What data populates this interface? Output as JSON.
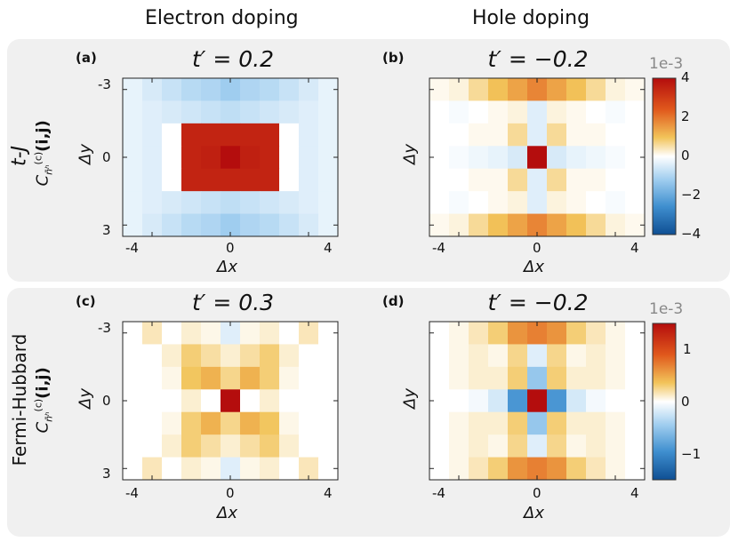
{
  "columns": {
    "left": "Electron doping",
    "right": "Hole doping"
  },
  "rows": {
    "top": "t-J",
    "bottom": "Fermi-Hubbard"
  },
  "row_ylabel_main": "C",
  "row_ylabel_sup": "(c)",
  "row_ylabel_sub": "n̄ʰ",
  "row_ylabel_args": "(i,j)",
  "colorbar_top": {
    "multiplier": "1e-3",
    "ticks": [
      "4",
      "2",
      "0",
      "−2",
      "−4"
    ]
  },
  "colorbar_bottom": {
    "multiplier": "1e-3",
    "ticks": [
      "1",
      "0",
      "−1"
    ]
  },
  "chart_data": [
    {
      "type": "heatmap",
      "panel": "(a)",
      "title": "t′ = 0.2",
      "xlabel": "Δx",
      "ylabel": "Δy",
      "x": [
        -5,
        -4,
        -3,
        -2,
        -1,
        0,
        1,
        2,
        3,
        4,
        5
      ],
      "y": [
        -3,
        -2,
        -1,
        0,
        1,
        2,
        3
      ],
      "xticks": [
        "-4",
        "0",
        "4"
      ],
      "yticks": [
        "-3",
        "0",
        "3"
      ],
      "clim": [
        -4,
        4
      ],
      "units": "1e-3",
      "values": [
        [
          -0.3,
          -0.5,
          -0.7,
          -0.9,
          -1.0,
          -1.2,
          -1.0,
          -0.9,
          -0.7,
          -0.5,
          -0.3
        ],
        [
          -0.3,
          -0.4,
          -0.5,
          -0.6,
          -0.7,
          -0.8,
          -0.7,
          -0.6,
          -0.5,
          -0.4,
          -0.3
        ],
        [
          -0.3,
          -0.4,
          0.0,
          3.5,
          3.5,
          3.5,
          3.5,
          3.5,
          0.0,
          -0.4,
          -0.3
        ],
        [
          -0.3,
          -0.4,
          0.0,
          3.5,
          3.6,
          5.0,
          3.6,
          3.5,
          0.0,
          -0.4,
          -0.3
        ],
        [
          -0.3,
          -0.4,
          0.0,
          3.5,
          3.5,
          3.5,
          3.5,
          3.5,
          0.0,
          -0.4,
          -0.3
        ],
        [
          -0.3,
          -0.4,
          -0.5,
          -0.6,
          -0.7,
          -0.8,
          -0.7,
          -0.6,
          -0.5,
          -0.4,
          -0.3
        ],
        [
          -0.3,
          -0.5,
          -0.7,
          -0.9,
          -1.0,
          -1.2,
          -1.0,
          -0.9,
          -0.7,
          -0.5,
          -0.3
        ]
      ]
    },
    {
      "type": "heatmap",
      "panel": "(b)",
      "title": "t′ = −0.2",
      "xlabel": "Δx",
      "ylabel": "Δy",
      "x": [
        -5,
        -4,
        -3,
        -2,
        -1,
        0,
        1,
        2,
        3,
        4,
        5
      ],
      "y": [
        -3,
        -2,
        -1,
        0,
        1,
        2,
        3
      ],
      "xticks": [
        "-4",
        "0",
        "4"
      ],
      "yticks": [
        "-3",
        "0",
        "3"
      ],
      "clim": [
        -4,
        4
      ],
      "units": "1e-3",
      "values": [
        [
          0.1,
          0.2,
          0.6,
          1.0,
          1.4,
          1.8,
          1.4,
          1.0,
          0.6,
          0.2,
          0.1
        ],
        [
          0.0,
          -0.1,
          0.0,
          0.1,
          0.2,
          -0.4,
          0.2,
          0.1,
          0.0,
          -0.1,
          0.0
        ],
        [
          0.0,
          0.0,
          0.1,
          0.1,
          0.6,
          -0.4,
          0.6,
          0.1,
          0.1,
          0.0,
          0.0
        ],
        [
          0.0,
          -0.1,
          -0.2,
          -0.3,
          -0.5,
          5.0,
          -0.5,
          -0.3,
          -0.2,
          -0.1,
          0.0
        ],
        [
          0.0,
          0.0,
          0.1,
          0.1,
          0.6,
          -0.4,
          0.6,
          0.1,
          0.1,
          0.0,
          0.0
        ],
        [
          0.0,
          -0.1,
          0.0,
          0.1,
          0.2,
          -0.4,
          0.2,
          0.1,
          0.0,
          -0.1,
          0.0
        ],
        [
          0.1,
          0.2,
          0.6,
          1.0,
          1.4,
          1.8,
          1.4,
          1.0,
          0.6,
          0.2,
          0.1
        ]
      ]
    },
    {
      "type": "heatmap",
      "panel": "(c)",
      "title": "t′ = 0.3",
      "xlabel": "Δx",
      "ylabel": "Δy",
      "x": [
        -5,
        -4,
        -3,
        -2,
        -1,
        0,
        1,
        2,
        3,
        4,
        5
      ],
      "y": [
        -3,
        -2,
        -1,
        0,
        1,
        2,
        3
      ],
      "xticks": [
        "-4",
        "0",
        "4"
      ],
      "yticks": [
        "-3",
        "0",
        "3"
      ],
      "clim": [
        -1.5,
        1.5
      ],
      "units": "1e-3",
      "values": [
        [
          0.0,
          0.15,
          0.0,
          0.1,
          0.05,
          -0.15,
          0.05,
          0.1,
          0.0,
          0.15,
          0.0
        ],
        [
          0.0,
          0.0,
          0.1,
          0.3,
          0.2,
          0.1,
          0.2,
          0.3,
          0.1,
          0.0,
          0.0
        ],
        [
          0.0,
          0.0,
          0.05,
          0.35,
          0.45,
          0.25,
          0.45,
          0.3,
          0.05,
          0.0,
          0.0
        ],
        [
          0.0,
          0.0,
          0.0,
          0.1,
          0.0,
          2.0,
          0.0,
          0.1,
          0.0,
          0.0,
          0.0
        ],
        [
          0.0,
          0.0,
          0.05,
          0.3,
          0.45,
          0.25,
          0.45,
          0.35,
          0.05,
          0.0,
          0.0
        ],
        [
          0.0,
          0.0,
          0.1,
          0.3,
          0.2,
          0.1,
          0.2,
          0.3,
          0.1,
          0.0,
          0.0
        ],
        [
          0.0,
          0.15,
          0.0,
          0.1,
          0.05,
          -0.15,
          0.05,
          0.1,
          0.0,
          0.15,
          0.0
        ]
      ]
    },
    {
      "type": "heatmap",
      "panel": "(d)",
      "title": "t′ = −0.2",
      "xlabel": "Δx",
      "ylabel": "Δy",
      "x": [
        -5,
        -4,
        -3,
        -2,
        -1,
        0,
        1,
        2,
        3,
        4,
        5
      ],
      "y": [
        -3,
        -2,
        -1,
        0,
        1,
        2,
        3
      ],
      "xticks": [
        "-4",
        "0",
        "4"
      ],
      "yticks": [
        "-3",
        "0",
        "3"
      ],
      "clim": [
        -1.5,
        1.5
      ],
      "units": "1e-3",
      "values": [
        [
          0.0,
          0.05,
          0.15,
          0.3,
          0.6,
          0.7,
          0.6,
          0.3,
          0.15,
          0.05,
          0.0
        ],
        [
          0.0,
          0.05,
          0.1,
          0.05,
          0.25,
          -0.15,
          0.25,
          0.05,
          0.1,
          0.05,
          0.0
        ],
        [
          0.0,
          0.05,
          0.1,
          0.1,
          0.3,
          -0.5,
          0.3,
          0.1,
          0.1,
          0.05,
          0.0
        ],
        [
          0.0,
          0.0,
          -0.05,
          -0.2,
          -0.9,
          1.8,
          -0.9,
          -0.2,
          -0.05,
          0.0,
          0.0
        ],
        [
          0.0,
          0.05,
          0.1,
          0.1,
          0.3,
          -0.5,
          0.3,
          0.1,
          0.1,
          0.05,
          0.0
        ],
        [
          0.0,
          0.05,
          0.1,
          0.05,
          0.25,
          -0.15,
          0.25,
          0.05,
          0.1,
          0.05,
          0.0
        ],
        [
          0.0,
          0.05,
          0.15,
          0.3,
          0.6,
          0.7,
          0.6,
          0.3,
          0.15,
          0.05,
          0.0
        ]
      ]
    }
  ]
}
